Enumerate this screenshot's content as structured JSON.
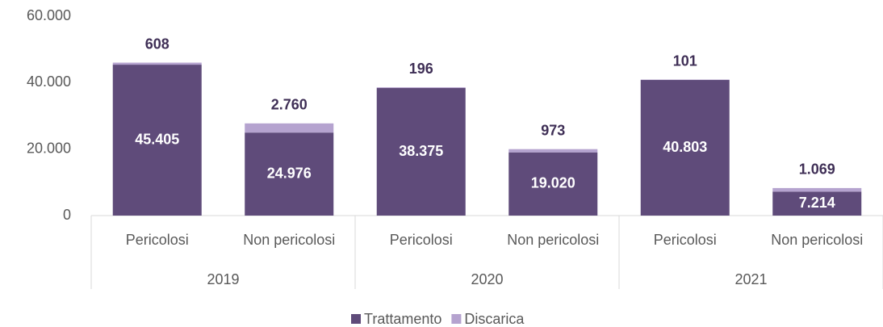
{
  "chart_data": {
    "type": "stacked_bar",
    "groups": [
      "2019",
      "2020",
      "2021"
    ],
    "categories": [
      "Pericolosi",
      "Non pericolosi",
      "Pericolosi",
      "Non pericolosi",
      "Pericolosi",
      "Non pericolosi"
    ],
    "series": [
      {
        "name": "Trattamento",
        "color": "#5f4b7a",
        "values": [
          45405,
          24976,
          38375,
          19020,
          40803,
          7214
        ],
        "value_labels": [
          "45.405",
          "24.976",
          "38.375",
          "19.020",
          "40.803",
          "7.214"
        ]
      },
      {
        "name": "Discarica",
        "color": "#b5a3cf",
        "values": [
          608,
          2760,
          196,
          973,
          101,
          1069
        ],
        "value_labels": [
          "608",
          "2.760",
          "196",
          "973",
          "101",
          "1.069"
        ]
      }
    ],
    "ylim": [
      0,
      60000
    ],
    "yticks": [
      {
        "value": 0,
        "label": "0"
      },
      {
        "value": 20000,
        "label": "20.000"
      },
      {
        "value": 40000,
        "label": "40.000"
      },
      {
        "value": 60000,
        "label": "60.000"
      }
    ],
    "legend": "bottom"
  }
}
